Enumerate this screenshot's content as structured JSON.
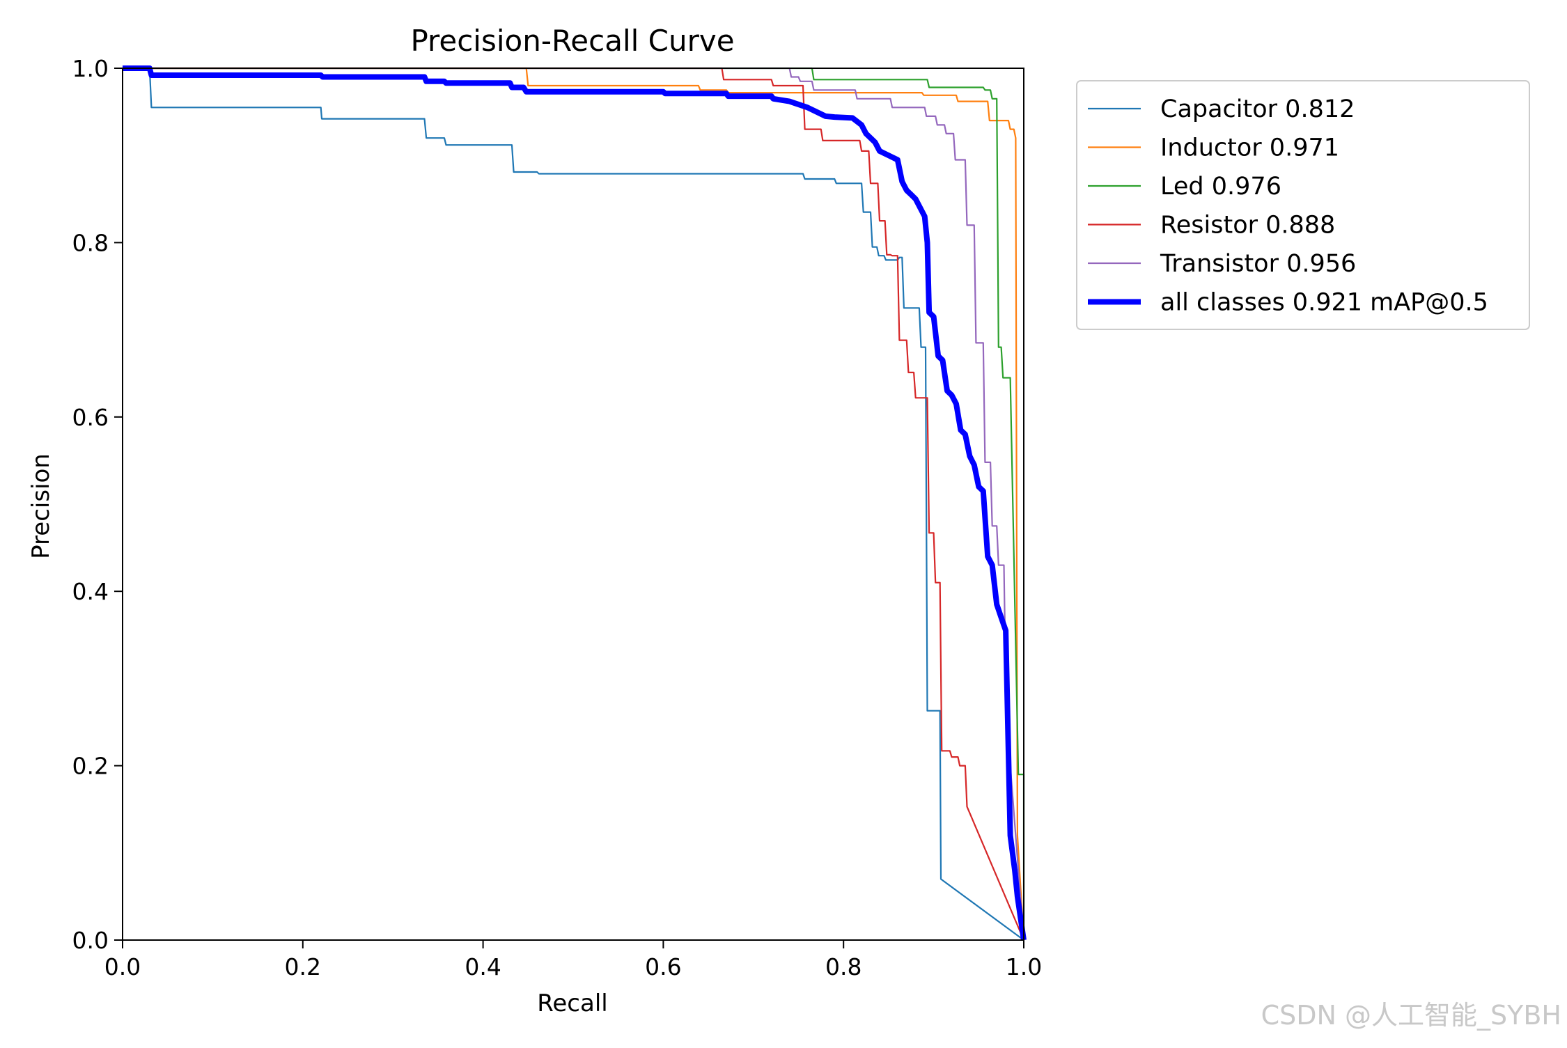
{
  "chart_data": {
    "type": "line",
    "title": "Precision-Recall Curve",
    "xlabel": "Recall",
    "ylabel": "Precision",
    "xlim": [
      0,
      1
    ],
    "ylim": [
      0,
      1
    ],
    "xticks": [
      "0.0",
      "0.2",
      "0.4",
      "0.6",
      "0.8",
      "1.0"
    ],
    "yticks": [
      "0.0",
      "0.2",
      "0.4",
      "0.6",
      "0.8",
      "1.0"
    ],
    "grid": false,
    "legend_position": "outside-top-right",
    "series": [
      {
        "name": "Capacitor 0.812",
        "color": "#1f77b4",
        "x": [
          0,
          0.03,
          0.032,
          0.22,
          0.221,
          0.335,
          0.337,
          0.357,
          0.359,
          0.432,
          0.434,
          0.46,
          0.462,
          0.755,
          0.757,
          0.79,
          0.792,
          0.82,
          0.822,
          0.83,
          0.832,
          0.837,
          0.839,
          0.845,
          0.847,
          0.86,
          0.862,
          0.865,
          0.867,
          0.884,
          0.886,
          0.891,
          0.893,
          0.9,
          0.902,
          0.907,
          0.908,
          1.0
        ],
        "y": [
          1.0,
          1.0,
          0.955,
          0.955,
          0.942,
          0.942,
          0.92,
          0.92,
          0.912,
          0.912,
          0.881,
          0.881,
          0.879,
          0.879,
          0.873,
          0.873,
          0.868,
          0.868,
          0.835,
          0.835,
          0.795,
          0.795,
          0.785,
          0.785,
          0.78,
          0.78,
          0.783,
          0.783,
          0.725,
          0.725,
          0.68,
          0.68,
          0.263,
          0.263,
          0.263,
          0.263,
          0.07,
          0.0
        ]
      },
      {
        "name": "Inductor 0.971",
        "color": "#ff7f0e",
        "x": [
          0,
          0.448,
          0.45,
          0.639,
          0.641,
          0.67,
          0.672,
          0.887,
          0.889,
          0.925,
          0.927,
          0.96,
          0.962,
          0.972,
          0.974,
          0.983,
          0.985,
          0.989,
          0.991,
          0.993,
          1.0
        ],
        "y": [
          1.0,
          1.0,
          0.98,
          0.98,
          0.975,
          0.975,
          0.972,
          0.972,
          0.969,
          0.969,
          0.962,
          0.962,
          0.94,
          0.94,
          0.94,
          0.94,
          0.93,
          0.93,
          0.92,
          0.12,
          0.0
        ]
      },
      {
        "name": "Led 0.976",
        "color": "#2ca02c",
        "x": [
          0,
          0.765,
          0.767,
          0.893,
          0.895,
          0.955,
          0.957,
          0.963,
          0.965,
          0.97,
          0.972,
          0.975,
          0.977,
          0.983,
          0.985,
          0.994,
          0.996,
          1.0,
          1.0
        ],
        "y": [
          1.0,
          1.0,
          0.987,
          0.987,
          0.978,
          0.978,
          0.975,
          0.975,
          0.965,
          0.965,
          0.68,
          0.68,
          0.645,
          0.645,
          0.645,
          0.19,
          0.19,
          0.19,
          0.0
        ]
      },
      {
        "name": "Resistor 0.888",
        "color": "#d62728",
        "x": [
          0,
          0.665,
          0.667,
          0.72,
          0.722,
          0.755,
          0.757,
          0.775,
          0.777,
          0.818,
          0.82,
          0.828,
          0.83,
          0.838,
          0.84,
          0.846,
          0.848,
          0.852,
          0.854,
          0.86,
          0.862,
          0.87,
          0.872,
          0.878,
          0.88,
          0.888,
          0.89,
          0.893,
          0.895,
          0.9,
          0.902,
          0.907,
          0.909,
          0.918,
          0.92,
          0.927,
          0.929,
          0.935,
          0.937,
          1.0
        ],
        "y": [
          1.0,
          1.0,
          0.987,
          0.987,
          0.98,
          0.98,
          0.93,
          0.93,
          0.917,
          0.917,
          0.905,
          0.905,
          0.868,
          0.868,
          0.825,
          0.825,
          0.786,
          0.786,
          0.785,
          0.785,
          0.688,
          0.688,
          0.651,
          0.651,
          0.622,
          0.622,
          0.622,
          0.622,
          0.467,
          0.467,
          0.41,
          0.41,
          0.217,
          0.217,
          0.21,
          0.21,
          0.2,
          0.2,
          0.153,
          0.0
        ]
      },
      {
        "name": "Transistor 0.956",
        "color": "#9467bd",
        "x": [
          0,
          0.74,
          0.742,
          0.75,
          0.752,
          0.765,
          0.767,
          0.813,
          0.815,
          0.852,
          0.854,
          0.89,
          0.892,
          0.902,
          0.904,
          0.912,
          0.914,
          0.922,
          0.924,
          0.935,
          0.937,
          0.945,
          0.947,
          0.955,
          0.957,
          0.963,
          0.965,
          0.97,
          0.972,
          0.978,
          0.98,
          0.982,
          0.985,
          1.0
        ],
        "y": [
          1.0,
          1.0,
          0.99,
          0.99,
          0.985,
          0.985,
          0.975,
          0.975,
          0.965,
          0.965,
          0.955,
          0.955,
          0.945,
          0.945,
          0.935,
          0.935,
          0.925,
          0.925,
          0.895,
          0.895,
          0.82,
          0.82,
          0.685,
          0.685,
          0.548,
          0.548,
          0.475,
          0.475,
          0.43,
          0.43,
          0.295,
          0.29,
          0.2,
          0.0
        ]
      },
      {
        "name": "all classes 0.921 mAP@0.5",
        "color": "#0000ff",
        "bold": true,
        "x": [
          0,
          0.03,
          0.032,
          0.22,
          0.222,
          0.335,
          0.337,
          0.357,
          0.359,
          0.43,
          0.432,
          0.445,
          0.448,
          0.6,
          0.602,
          0.67,
          0.672,
          0.72,
          0.722,
          0.74,
          0.76,
          0.78,
          0.79,
          0.81,
          0.82,
          0.825,
          0.835,
          0.84,
          0.85,
          0.86,
          0.865,
          0.87,
          0.875,
          0.88,
          0.885,
          0.89,
          0.893,
          0.895,
          0.9,
          0.905,
          0.91,
          0.915,
          0.92,
          0.925,
          0.93,
          0.935,
          0.94,
          0.945,
          0.95,
          0.955,
          0.96,
          0.965,
          0.97,
          0.975,
          0.98,
          0.985,
          0.99,
          0.993,
          1.0
        ],
        "y": [
          1.0,
          1.0,
          0.992,
          0.992,
          0.99,
          0.99,
          0.985,
          0.985,
          0.983,
          0.983,
          0.978,
          0.978,
          0.973,
          0.973,
          0.971,
          0.971,
          0.968,
          0.968,
          0.965,
          0.962,
          0.955,
          0.945,
          0.944,
          0.943,
          0.935,
          0.925,
          0.915,
          0.905,
          0.9,
          0.895,
          0.87,
          0.86,
          0.855,
          0.85,
          0.84,
          0.83,
          0.8,
          0.72,
          0.715,
          0.67,
          0.665,
          0.63,
          0.625,
          0.615,
          0.585,
          0.58,
          0.555,
          0.545,
          0.52,
          0.515,
          0.44,
          0.43,
          0.385,
          0.37,
          0.355,
          0.12,
          0.08,
          0.05,
          0.0
        ]
      }
    ]
  },
  "watermark": "CSDN @人工智能_SYBH"
}
